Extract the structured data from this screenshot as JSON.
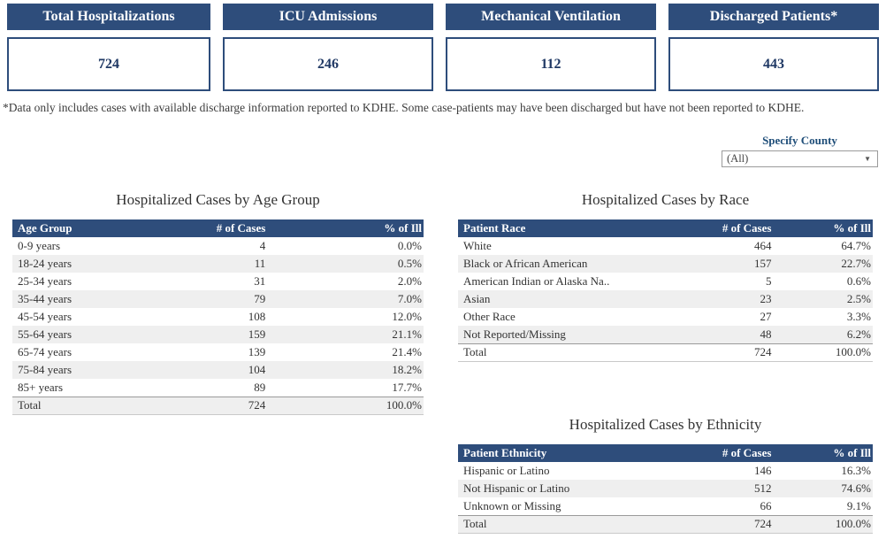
{
  "summary_cards": [
    {
      "label": "Total Hospitalizations",
      "value": "724"
    },
    {
      "label": "ICU Admissions",
      "value": "246"
    },
    {
      "label": "Mechanical Ventilation",
      "value": "112"
    },
    {
      "label": "Discharged Patients*",
      "value": "443"
    }
  ],
  "footnote": "*Data only includes cases with available discharge information reported to KDHE. Some case-patients may have been discharged but have not been reported to KDHE.",
  "county_filter": {
    "label": "Specify County",
    "selected_value": "(All)",
    "dropdown_icon": "chevron-down-icon"
  },
  "colors": {
    "header_navy": "#2e4d7b",
    "value_navy": "#1f3864",
    "label_navy": "#1f4e79",
    "row_stripe": "#efefef"
  },
  "tables": {
    "age": {
      "title": "Hospitalized Cases by Age Group",
      "columns": [
        "Age Group",
        "# of Cases",
        "% of Ill"
      ],
      "rows": [
        [
          "0-9 years",
          "4",
          "0.0%"
        ],
        [
          "18-24 years",
          "11",
          "0.5%"
        ],
        [
          "25-34 years",
          "31",
          "2.0%"
        ],
        [
          "35-44 years",
          "79",
          "7.0%"
        ],
        [
          "45-54 years",
          "108",
          "12.0%"
        ],
        [
          "55-64 years",
          "159",
          "21.1%"
        ],
        [
          "65-74 years",
          "139",
          "21.4%"
        ],
        [
          "75-84 years",
          "104",
          "18.2%"
        ],
        [
          "85+ years",
          "89",
          "17.7%"
        ]
      ],
      "total_row": [
        "Total",
        "724",
        "100.0%"
      ]
    },
    "race": {
      "title": "Hospitalized Cases by Race",
      "columns": [
        "Patient Race",
        "# of Cases",
        "% of Ill"
      ],
      "rows": [
        [
          "White",
          "464",
          "64.7%"
        ],
        [
          "Black or African American",
          "157",
          "22.7%"
        ],
        [
          "American Indian or Alaska Na..",
          "5",
          "0.6%"
        ],
        [
          "Asian",
          "23",
          "2.5%"
        ],
        [
          "Other Race",
          "27",
          "3.3%"
        ],
        [
          "Not Reported/Missing",
          "48",
          "6.2%"
        ]
      ],
      "total_row": [
        "Total",
        "724",
        "100.0%"
      ]
    },
    "ethnicity": {
      "title": "Hospitalized Cases by Ethnicity",
      "columns": [
        "Patient Ethnicity",
        "# of Cases",
        "% of Ill"
      ],
      "rows": [
        [
          "Hispanic or Latino",
          "146",
          "16.3%"
        ],
        [
          "Not Hispanic or Latino",
          "512",
          "74.6%"
        ],
        [
          "Unknown or Missing",
          "66",
          "9.1%"
        ]
      ],
      "total_row": [
        "Total",
        "724",
        "100.0%"
      ]
    }
  }
}
